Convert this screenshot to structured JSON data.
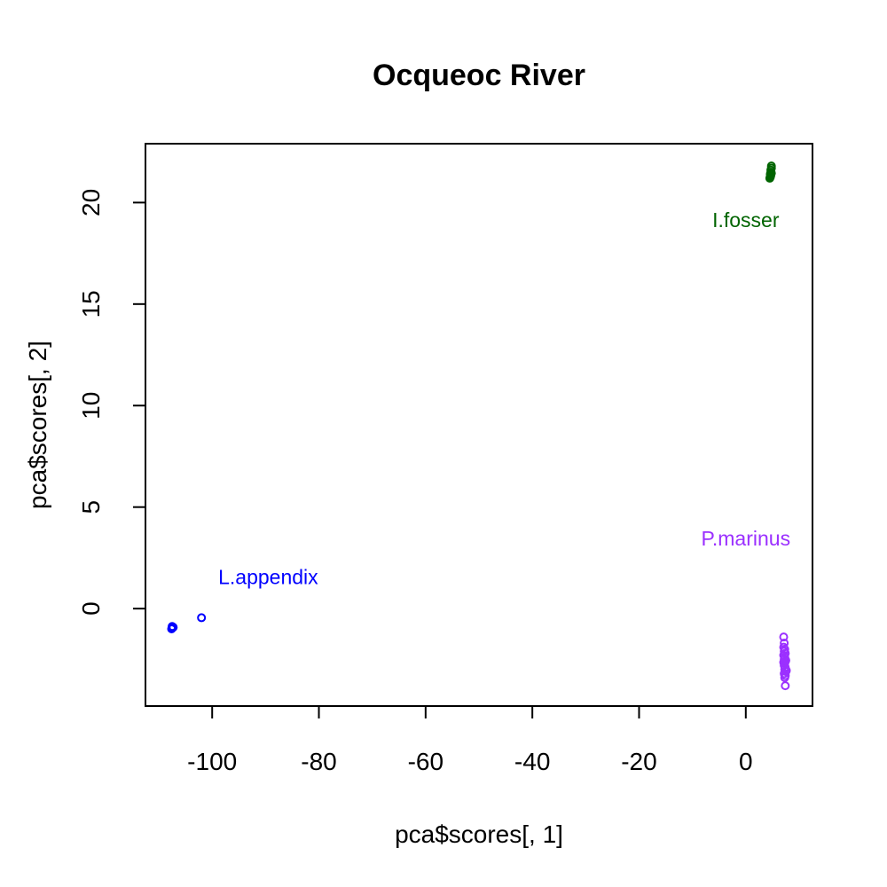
{
  "chart_data": {
    "type": "scatter",
    "title": "Ocqueoc River",
    "xlabel": "pca$scores[, 1]",
    "ylabel": "pca$scores[, 2]",
    "xlim": [
      -112.5,
      12.5
    ],
    "ylim": [
      -4.8,
      22.9
    ],
    "xticks": [
      -100,
      -80,
      -60,
      -40,
      -20,
      0
    ],
    "yticks": [
      0,
      5,
      10,
      15,
      20
    ],
    "grid": false,
    "series": [
      {
        "name": "L.appendix",
        "color": "#0000ff",
        "label_at": [
          -89.5,
          1.2
        ],
        "points": [
          [
            -107.5,
            -0.95
          ],
          [
            -107.4,
            -0.9
          ],
          [
            -107.6,
            -1.0
          ],
          [
            -107.3,
            -0.92
          ],
          [
            -107.5,
            -0.88
          ],
          [
            -102.0,
            -0.45
          ]
        ]
      },
      {
        "name": "I.fosser",
        "color": "#006400",
        "label_at": [
          0,
          18.8
        ],
        "points": [
          [
            4.5,
            21.2
          ],
          [
            4.6,
            21.3
          ],
          [
            4.6,
            21.4
          ],
          [
            4.7,
            21.5
          ],
          [
            4.7,
            21.6
          ],
          [
            4.8,
            21.7
          ],
          [
            4.8,
            21.8
          ],
          [
            4.6,
            21.25
          ],
          [
            4.7,
            21.35
          ],
          [
            4.8,
            21.45
          ]
        ]
      },
      {
        "name": "P.marinus",
        "color": "#9b30ff",
        "label_at": [
          0,
          3.1
        ],
        "points": [
          [
            7.1,
            -1.4
          ],
          [
            7.2,
            -1.7
          ],
          [
            7.1,
            -1.9
          ],
          [
            7.3,
            -2.0
          ],
          [
            7.2,
            -2.1
          ],
          [
            7.4,
            -2.2
          ],
          [
            7.1,
            -2.3
          ],
          [
            7.3,
            -2.4
          ],
          [
            7.2,
            -2.5
          ],
          [
            7.4,
            -2.6
          ],
          [
            7.3,
            -2.7
          ],
          [
            7.2,
            -2.8
          ],
          [
            7.4,
            -2.9
          ],
          [
            7.3,
            -3.0
          ],
          [
            7.5,
            -3.1
          ],
          [
            7.2,
            -3.2
          ],
          [
            7.4,
            -3.3
          ],
          [
            7.3,
            -3.4
          ],
          [
            7.4,
            -3.8
          ],
          [
            7.5,
            -2.55
          ],
          [
            7.1,
            -2.65
          ],
          [
            7.6,
            -3.05
          ]
        ]
      }
    ]
  }
}
